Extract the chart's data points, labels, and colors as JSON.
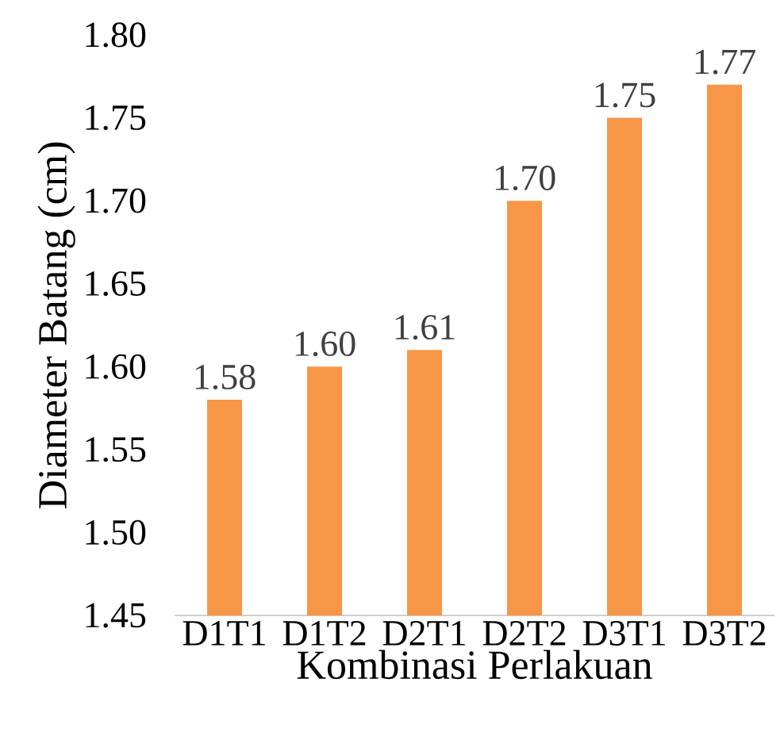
{
  "chart_data": {
    "type": "bar",
    "xlabel": "Kombinasi Perlakuan",
    "ylabel": "Diameter Batang (cm)",
    "categories": [
      "D1T1",
      "D1T2",
      "D2T1",
      "D2T2",
      "D3T1",
      "D3T2"
    ],
    "values": [
      1.58,
      1.6,
      1.61,
      1.7,
      1.75,
      1.77
    ],
    "color": "#f79646",
    "ylim": [
      1.45,
      1.8
    ],
    "yticks": [
      {
        "value": 1.45,
        "label": "1.45"
      },
      {
        "value": 1.5,
        "label": "1.50"
      },
      {
        "value": 1.55,
        "label": "1.55"
      },
      {
        "value": 1.6,
        "label": "1.60"
      },
      {
        "value": 1.65,
        "label": "1.65"
      },
      {
        "value": 1.7,
        "label": "1.70"
      },
      {
        "value": 1.75,
        "label": "1.75"
      },
      {
        "value": 1.8,
        "label": "1.80"
      }
    ],
    "value_labels": [
      "1.58",
      "1.60",
      "1.61",
      "1.70",
      "1.75",
      "1.77"
    ],
    "grid": false
  }
}
